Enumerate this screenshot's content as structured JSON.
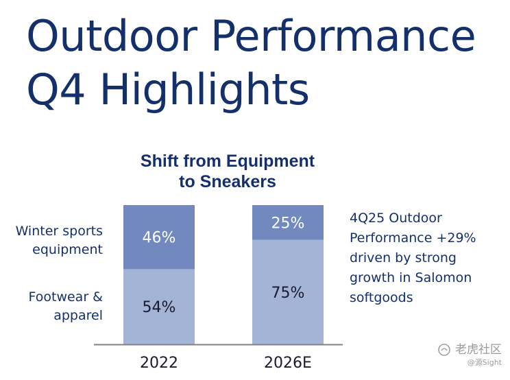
{
  "slide": {
    "title_lines": [
      "Outdoor Performance",
      "Q4 Highlights"
    ]
  },
  "chart_data": {
    "type": "bar",
    "stacked": true,
    "title_lines": [
      "Shift from Equipment",
      "to Sneakers"
    ],
    "categories": [
      "2022",
      "2026E"
    ],
    "series": [
      {
        "name": "Footwear & apparel",
        "label_lines": [
          "Footwear &",
          "apparel"
        ],
        "values": [
          54,
          75
        ],
        "value_labels": [
          "54%",
          "75%"
        ],
        "color": "#a3b4d6",
        "label_color": "#1a1a2e"
      },
      {
        "name": "Winter sports equipment",
        "label_lines": [
          "Winter sports",
          "equipment"
        ],
        "values": [
          46,
          25
        ],
        "value_labels": [
          "46%",
          "25%"
        ],
        "color": "#7189bf",
        "label_color": "#ffffff"
      }
    ],
    "ylim": [
      0,
      100
    ],
    "grid": false,
    "legend": "left"
  },
  "note_lines": [
    "4Q25 Outdoor",
    "Performance +29%",
    "driven by strong",
    "growth in Salomon",
    "softgoods"
  ],
  "watermark": {
    "main": "老虎社区",
    "sub": "@源Sight"
  },
  "colors": {
    "title": "#14306b",
    "axis": "#808080"
  }
}
